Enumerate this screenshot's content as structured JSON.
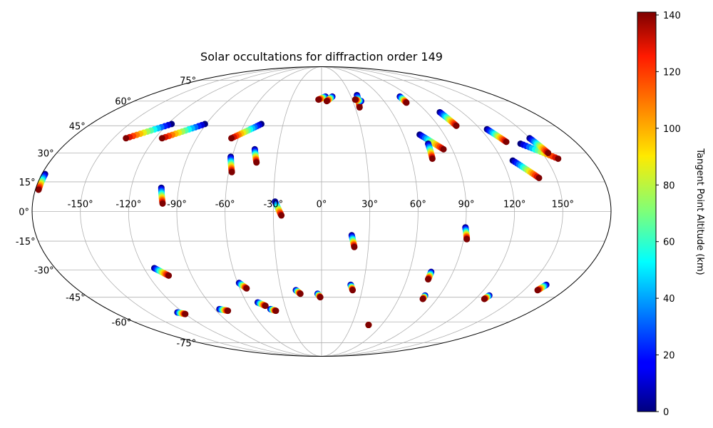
{
  "chart_data": {
    "type": "scatter",
    "projection": "mollweide",
    "title": "Solar occultations for diffraction order 149",
    "x_tick_labels": [
      "-150°",
      "-120°",
      "-90°",
      "-60°",
      "-30°",
      "0°",
      "30°",
      "60°",
      "90°",
      "120°",
      "150°"
    ],
    "y_tick_labels": [
      "-75°",
      "-60°",
      "-45°",
      "-30°",
      "-15°",
      "0°",
      "15°",
      "30°",
      "45°",
      "60°",
      "75°"
    ],
    "xlim": [
      -180,
      180
    ],
    "ylim": [
      -90,
      90
    ],
    "grid": true,
    "colorbar": {
      "label": "Tangent Point Altitude (km)",
      "colormap": "jet",
      "range": [
        0,
        141
      ],
      "tick_labels": [
        "0",
        "20",
        "40",
        "60",
        "80",
        "100",
        "120",
        "140"
      ]
    },
    "occultations": [
      {
        "lon_start": -178,
        "lat_start": 19,
        "lon_end": -178,
        "lat_end": 11
      },
      {
        "lon_start": -117,
        "lat_start": 46,
        "lon_end": -141,
        "lat_end": 38
      },
      {
        "lon_start": -91,
        "lat_start": 46,
        "lon_end": -115,
        "lat_end": 38
      },
      {
        "lon_start": -47,
        "lat_start": 46,
        "lon_end": -65,
        "lat_end": 38
      },
      {
        "lon_start": -61,
        "lat_start": 28,
        "lon_end": -58,
        "lat_end": 20
      },
      {
        "lon_start": -46,
        "lat_start": 32,
        "lon_end": -43,
        "lat_end": 25
      },
      {
        "lon_start": -101,
        "lat_start": 12,
        "lon_end": -99,
        "lat_end": 4
      },
      {
        "lon_start": -29,
        "lat_start": 5,
        "lon_end": -25,
        "lat_end": -2
      },
      {
        "lon_start": 4,
        "lat_start": 63,
        "lon_end": -3,
        "lat_end": 61
      },
      {
        "lon_start": 11,
        "lat_start": 63,
        "lon_end": 5,
        "lat_end": 60
      },
      {
        "lon_start": 37,
        "lat_start": 64,
        "lon_end": 34,
        "lat_end": 56
      },
      {
        "lon_start": 38,
        "lat_start": 60,
        "lon_end": 33,
        "lat_end": 61
      },
      {
        "lon_start": 80,
        "lat_start": 63,
        "lon_end": 80,
        "lat_end": 59
      },
      {
        "lon_start": 101,
        "lat_start": 53,
        "lon_end": 104,
        "lat_end": 45
      },
      {
        "lon_start": 72,
        "lat_start": 40,
        "lon_end": 84,
        "lat_end": 32
      },
      {
        "lon_start": 75,
        "lat_start": 35,
        "lon_end": 74,
        "lat_end": 27
      },
      {
        "lon_start": 125,
        "lat_start": 43,
        "lon_end": 131,
        "lat_end": 36
      },
      {
        "lon_start": 140,
        "lat_start": 35,
        "lon_end": 158,
        "lat_end": 27
      },
      {
        "lon_start": 150,
        "lat_start": 38,
        "lon_end": 154,
        "lat_end": 30
      },
      {
        "lon_start": 127,
        "lat_start": 26,
        "lon_end": 139,
        "lat_end": 17
      },
      {
        "lon_start": 19,
        "lat_start": -12,
        "lon_end": 21,
        "lat_end": -18
      },
      {
        "lon_start": 90,
        "lat_start": -8,
        "lon_end": 92,
        "lat_end": -14
      },
      {
        "lon_start": -113,
        "lat_start": -29,
        "lon_end": -106,
        "lat_end": -33
      },
      {
        "lon_start": -59,
        "lat_start": -37,
        "lon_end": -55,
        "lat_end": -40
      },
      {
        "lon_start": -19,
        "lat_start": -41,
        "lon_end": -16,
        "lat_end": -43
      },
      {
        "lon_start": -3,
        "lat_start": -43,
        "lon_end": -1,
        "lat_end": -45
      },
      {
        "lon_start": 21,
        "lat_start": -38,
        "lon_end": 23,
        "lat_end": -41
      },
      {
        "lon_start": 75,
        "lat_start": -31,
        "lon_end": 75,
        "lat_end": -35
      },
      {
        "lon_start": 79,
        "lat_start": -44,
        "lon_end": 79,
        "lat_end": -46
      },
      {
        "lon_start": 128,
        "lat_start": -44,
        "lon_end": 127,
        "lat_end": -46
      },
      {
        "lon_start": 162,
        "lat_start": -38,
        "lon_end": 160,
        "lat_end": -41
      },
      {
        "lon_start": -125,
        "lat_start": -54,
        "lon_end": -120,
        "lat_end": -55
      },
      {
        "lon_start": -86,
        "lat_start": -52,
        "lon_end": -80,
        "lat_end": -53
      },
      {
        "lon_start": -51,
        "lat_start": -48,
        "lon_end": -46,
        "lat_end": -50
      },
      {
        "lon_start": -43,
        "lat_start": -52,
        "lon_end": -39,
        "lat_end": -53
      },
      {
        "lon_start": 47,
        "lat_start": -62,
        "lon_end": 47,
        "lat_end": -62
      }
    ]
  }
}
